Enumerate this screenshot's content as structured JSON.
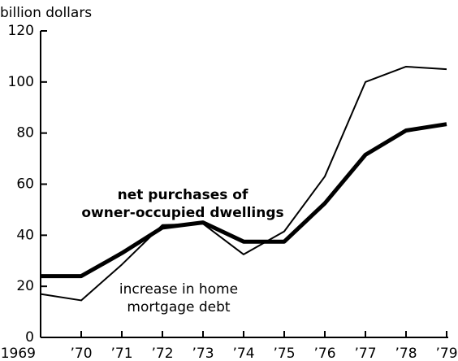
{
  "chart_data": {
    "type": "line",
    "y_label": "billion dollars",
    "categories": [
      "1969",
      "’70",
      "’71",
      "’72",
      "’73",
      "’74",
      "’75",
      "’76",
      "’77",
      "’78",
      "’79"
    ],
    "series": [
      {
        "name": [
          "net purchases of",
          "owner-occupied dwellings"
        ],
        "color": "#000000",
        "width": 5,
        "values": [
          24,
          24,
          33,
          43,
          45,
          37.5,
          37.5,
          52.5,
          71.5,
          81,
          83.5
        ]
      },
      {
        "name": [
          "increase in home",
          "mortgage debt"
        ],
        "color": "#000000",
        "width": 2,
        "values": [
          17,
          14.5,
          28.5,
          44,
          44.5,
          32.5,
          41.5,
          63,
          100,
          106,
          105
        ]
      }
    ],
    "ylim": [
      0,
      120
    ],
    "yticks": [
      0,
      20,
      40,
      60,
      80,
      100,
      120
    ]
  }
}
